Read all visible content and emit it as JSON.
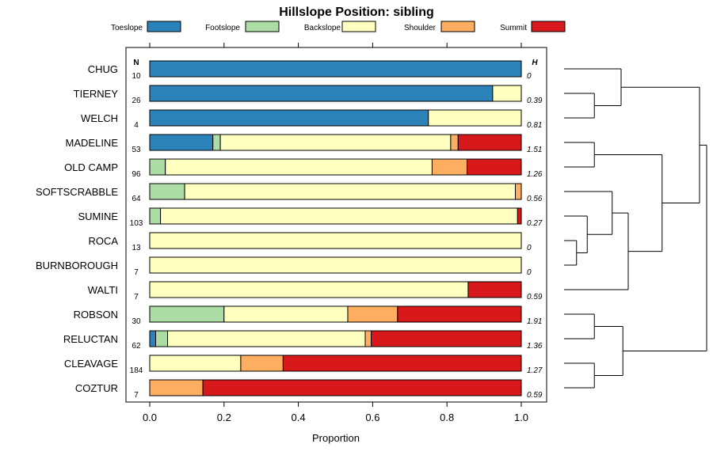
{
  "chart_data": {
    "type": "bar",
    "orientation": "horizontal",
    "stacked": true,
    "title": "Hillslope Position: sibling",
    "xlabel": "Proportion",
    "ylabel": "",
    "xlim": [
      0,
      1
    ],
    "x_ticks": [
      "0.0",
      "0.2",
      "0.4",
      "0.6",
      "0.8",
      "1.0"
    ],
    "n_header": "N",
    "h_header": "H",
    "legend_position": "top",
    "series": [
      {
        "name": "Toeslope",
        "color": "#2B83BA"
      },
      {
        "name": "Footslope",
        "color": "#ABDDA4"
      },
      {
        "name": "Backslope",
        "color": "#FFFFBF"
      },
      {
        "name": "Shoulder",
        "color": "#FDAE61"
      },
      {
        "name": "Summit",
        "color": "#D7191C"
      }
    ],
    "rows": [
      {
        "label": "CHUG",
        "n": "10",
        "h": "0",
        "values": [
          1.0,
          0,
          0,
          0,
          0
        ]
      },
      {
        "label": "TIERNEY",
        "n": "26",
        "h": "0.39",
        "values": [
          0.923,
          0,
          0.077,
          0,
          0
        ]
      },
      {
        "label": "WELCH",
        "n": "4",
        "h": "0.81",
        "values": [
          0.75,
          0,
          0.25,
          0,
          0
        ]
      },
      {
        "label": "MADELINE",
        "n": "53",
        "h": "1.51",
        "values": [
          0.17,
          0.02,
          0.62,
          0.02,
          0.17
        ]
      },
      {
        "label": "OLD CAMP",
        "n": "96",
        "h": "1.26",
        "values": [
          0,
          0.042,
          0.718,
          0.094,
          0.146
        ]
      },
      {
        "label": "SOFTSCRABBLE",
        "n": "64",
        "h": "0.56",
        "values": [
          0,
          0.094,
          0.89,
          0.016,
          0
        ]
      },
      {
        "label": "SUMINE",
        "n": "103",
        "h": "0.27",
        "values": [
          0,
          0.029,
          0.961,
          0,
          0.01
        ]
      },
      {
        "label": "ROCA",
        "n": "13",
        "h": "0",
        "values": [
          0,
          0,
          1.0,
          0,
          0
        ]
      },
      {
        "label": "BURNBOROUGH",
        "n": "7",
        "h": "0",
        "values": [
          0,
          0,
          1.0,
          0,
          0
        ]
      },
      {
        "label": "WALTI",
        "n": "7",
        "h": "0.59",
        "values": [
          0,
          0,
          0.857,
          0,
          0.143
        ]
      },
      {
        "label": "ROBSON",
        "n": "30",
        "h": "1.91",
        "values": [
          0,
          0.2,
          0.333,
          0.134,
          0.333
        ]
      },
      {
        "label": "RELUCTAN",
        "n": "62",
        "h": "1.36",
        "values": [
          0.016,
          0.032,
          0.532,
          0.016,
          0.404
        ]
      },
      {
        "label": "CLEAVAGE",
        "n": "184",
        "h": "1.27",
        "values": [
          0,
          0,
          0.245,
          0.114,
          0.641
        ]
      },
      {
        "label": "COZTUR",
        "n": "7",
        "h": "0.59",
        "values": [
          0,
          0,
          0,
          0.143,
          0.857
        ]
      }
    ],
    "dendrogram": {
      "description": "hierarchical clustering of rows",
      "merges": [
        [
          1,
          2,
          0.17
        ],
        [
          0,
          "m0",
          0.32
        ],
        [
          7,
          8,
          0.07
        ],
        [
          6,
          "m2",
          0.13
        ],
        [
          5,
          "m3",
          0.27
        ],
        [
          3,
          4,
          0.17
        ],
        [
          9,
          "m4",
          0.36
        ],
        [
          "m5",
          "m6",
          0.55
        ],
        [
          "m1",
          "m7",
          0.76
        ],
        [
          10,
          11,
          0.17
        ],
        [
          12,
          13,
          0.17
        ],
        [
          "m9",
          "m10",
          0.33
        ],
        [
          "m8",
          "m11",
          0.8
        ]
      ],
      "max_height": 0.8
    }
  }
}
